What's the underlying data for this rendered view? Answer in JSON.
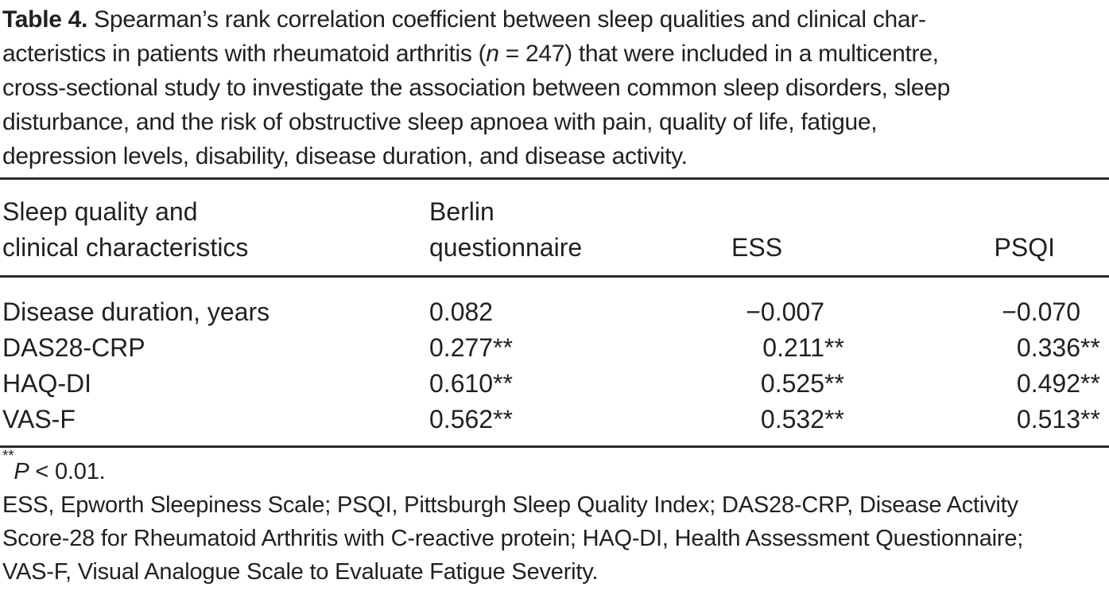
{
  "caption": {
    "label": "Table 4.",
    "lines": [
      {
        "pre": " Spearman’s rank correlation coefficient between sleep qualities and clinical char-"
      },
      {
        "pre": "acteristics in patients with rheumatoid arthritis (",
        "italic": "n",
        "post": " = 247) that were included in a multicentre,"
      },
      {
        "pre": "cross-sectional study to investigate the association between common sleep disorders, sleep"
      },
      {
        "pre": "disturbance, and the risk of obstructive sleep apnoea with pain, quality of life, fatigue,"
      },
      {
        "pre": "depression levels, disability, disease duration, and disease activity."
      }
    ]
  },
  "table": {
    "col_headers": {
      "col1": [
        "Sleep quality and",
        "clinical characteristics"
      ],
      "col2": [
        "Berlin",
        "questionnaire"
      ],
      "col3": "ESS",
      "col4": "PSQI"
    },
    "rows": [
      {
        "label": "Disease duration, years",
        "berlin": "0.082",
        "berlin_stars": "",
        "ess": "−0.007",
        "ess_stars": "",
        "psqi": "−0.070",
        "psqi_stars": ""
      },
      {
        "label": "DAS28-CRP",
        "berlin": "0.277",
        "berlin_stars": "**",
        "ess": "0.211",
        "ess_stars": "**",
        "psqi": "0.336",
        "psqi_stars": "**"
      },
      {
        "label": "HAQ-DI",
        "berlin": "0.610",
        "berlin_stars": "**",
        "ess": "0.525",
        "ess_stars": "**",
        "psqi": "0.492",
        "psqi_stars": "**"
      },
      {
        "label": "VAS-F",
        "berlin": "0.562",
        "berlin_stars": "**",
        "ess": "0.532",
        "ess_stars": "**",
        "psqi": "0.513",
        "psqi_stars": "**"
      }
    ]
  },
  "footnotes": {
    "significance": {
      "sup": "**",
      "p": "P",
      "rest": " < 0.01."
    },
    "abbrev_lines": [
      "ESS, Epworth Sleepiness Scale; PSQI, Pittsburgh Sleep Quality Index; DAS28-CRP, Disease Activity",
      "Score-28 for Rheumatoid Arthritis with C-reactive protein; HAQ-DI, Health Assessment Questionnaire;",
      "VAS-F, Visual Analogue Scale to Evaluate Fatigue Severity."
    ]
  },
  "colors": {
    "text": "#221f20",
    "rule": "#2b2b2b",
    "background": "#ffffff"
  }
}
